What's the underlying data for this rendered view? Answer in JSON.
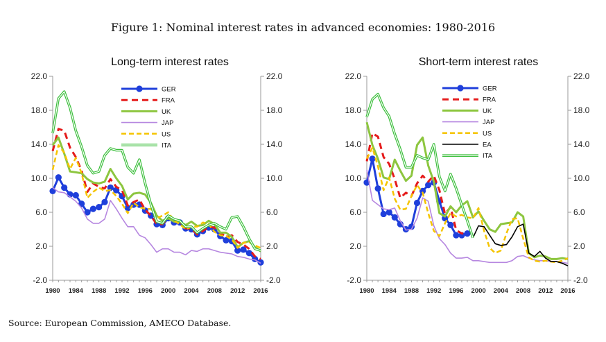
{
  "figure_title": "Figure 1: Nominal interest rates in advanced economies: 1980-2016",
  "source": "Source: European Commission, AMECO Database.",
  "series_styles": {
    "GER": {
      "color": "#1f3fdb",
      "width": 3,
      "dash": "",
      "marker": "circle"
    },
    "FRA": {
      "color": "#e51b1b",
      "width": 3,
      "dash": "9,6",
      "marker": ""
    },
    "UK": {
      "color": "#8dc63f",
      "width": 3,
      "dash": "",
      "marker": ""
    },
    "JAP": {
      "color": "#b687e0",
      "width": 1.6,
      "dash": "",
      "marker": ""
    },
    "US": {
      "color": "#f5c400",
      "width": 2.5,
      "dash": "7,4",
      "marker": ""
    },
    "EA": {
      "color": "#000000",
      "width": 1.6,
      "dash": "",
      "marker": ""
    },
    "ITA": {
      "color": "#3dbf3d",
      "width": 1.2,
      "dash": "",
      "marker": "",
      "double": true
    }
  },
  "chart_data": [
    {
      "type": "line",
      "title": "Long-term interest rates",
      "xlabel": "",
      "ylabel": "",
      "xlim": [
        1980,
        2016
      ],
      "ylim": [
        -2,
        22
      ],
      "yticks": [
        -2.0,
        2.0,
        6.0,
        10.0,
        14.0,
        18.0,
        22.0
      ],
      "ytick_labels": [
        "-2.0",
        "2.0",
        "6.0",
        "10.0",
        "14.0",
        "18.0",
        "22.0"
      ],
      "xticks": [
        1980,
        1984,
        1988,
        1992,
        1996,
        2000,
        2004,
        2008,
        2012,
        2016
      ],
      "xtick_labels": [
        "1980",
        "1984",
        "1988",
        "1992",
        "1996",
        "2000",
        "2004",
        "2008",
        "2012",
        "2016"
      ],
      "legend": [
        "GER",
        "FRA",
        "UK",
        "JAP",
        "US",
        "ITA"
      ],
      "legend_position": "top-center",
      "series": [
        {
          "name": "GER",
          "x": [
            1980,
            1981,
            1982,
            1983,
            1984,
            1985,
            1986,
            1987,
            1988,
            1989,
            1990,
            1991,
            1992,
            1993,
            1994,
            1995,
            1996,
            1997,
            1998,
            1999,
            2000,
            2001,
            2002,
            2003,
            2004,
            2005,
            2006,
            2007,
            2008,
            2009,
            2010,
            2011,
            2012,
            2013,
            2014,
            2015,
            2016
          ],
          "values": [
            8.5,
            10.1,
            8.9,
            8.1,
            8.0,
            7.0,
            6.0,
            6.4,
            6.6,
            7.2,
            8.9,
            8.6,
            7.9,
            6.5,
            6.9,
            6.9,
            6.2,
            5.6,
            4.6,
            4.5,
            5.3,
            4.8,
            4.8,
            4.1,
            4.0,
            3.4,
            3.8,
            4.2,
            4.0,
            3.2,
            2.7,
            2.6,
            1.5,
            1.6,
            1.2,
            0.5,
            0.1
          ]
        },
        {
          "name": "FRA",
          "x": [
            1980,
            1981,
            1982,
            1983,
            1984,
            1985,
            1986,
            1987,
            1988,
            1989,
            1990,
            1991,
            1992,
            1993,
            1994,
            1995,
            1996,
            1997,
            1998,
            1999,
            2000,
            2001,
            2002,
            2003,
            2004,
            2005,
            2006,
            2007,
            2008,
            2009,
            2010,
            2011,
            2012,
            2013,
            2014,
            2015,
            2016
          ],
          "values": [
            13.2,
            15.8,
            15.6,
            13.6,
            12.5,
            10.9,
            8.4,
            9.4,
            9.0,
            8.8,
            9.9,
            9.0,
            8.6,
            6.8,
            7.2,
            7.5,
            6.3,
            5.6,
            4.6,
            4.6,
            5.4,
            4.9,
            4.9,
            4.1,
            4.1,
            3.4,
            3.8,
            4.3,
            4.2,
            3.6,
            3.1,
            3.3,
            2.5,
            2.2,
            1.7,
            0.8,
            0.5
          ]
        },
        {
          "name": "UK",
          "x": [
            1980,
            1981,
            1982,
            1983,
            1984,
            1985,
            1986,
            1987,
            1988,
            1989,
            1990,
            1991,
            1992,
            1993,
            1994,
            1995,
            1996,
            1997,
            1998,
            1999,
            2000,
            2001,
            2002,
            2003,
            2004,
            2005,
            2006,
            2007,
            2008,
            2009,
            2010,
            2011,
            2012,
            2013,
            2014,
            2015,
            2016
          ],
          "values": [
            13.9,
            14.8,
            12.9,
            10.8,
            10.7,
            10.6,
            9.9,
            9.5,
            9.4,
            9.6,
            11.1,
            10.0,
            9.1,
            7.5,
            8.2,
            8.3,
            8.1,
            7.1,
            5.6,
            5.0,
            5.3,
            4.9,
            4.9,
            4.5,
            4.9,
            4.4,
            4.5,
            5.0,
            4.6,
            3.6,
            3.6,
            3.1,
            1.9,
            2.4,
            2.6,
            1.9,
            1.4
          ]
        },
        {
          "name": "JAP",
          "x": [
            1980,
            1981,
            1982,
            1983,
            1984,
            1985,
            1986,
            1987,
            1988,
            1989,
            1990,
            1991,
            1992,
            1993,
            1994,
            1995,
            1996,
            1997,
            1998,
            1999,
            2000,
            2001,
            2002,
            2003,
            2004,
            2005,
            2006,
            2007,
            2008,
            2009,
            2010,
            2011,
            2012,
            2013,
            2014,
            2015,
            2016
          ],
          "values": [
            8.9,
            8.4,
            8.3,
            7.8,
            7.3,
            6.5,
            5.2,
            4.7,
            4.7,
            5.2,
            7.4,
            6.4,
            5.3,
            4.3,
            4.3,
            3.3,
            3.0,
            2.2,
            1.3,
            1.7,
            1.7,
            1.3,
            1.3,
            1.0,
            1.5,
            1.4,
            1.7,
            1.7,
            1.5,
            1.3,
            1.2,
            1.1,
            0.8,
            0.7,
            0.5,
            0.4,
            0.0
          ]
        },
        {
          "name": "US",
          "x": [
            1980,
            1981,
            1982,
            1983,
            1984,
            1985,
            1986,
            1987,
            1988,
            1989,
            1990,
            1991,
            1992,
            1993,
            1994,
            1995,
            1996,
            1997,
            1998,
            1999,
            2000,
            2001,
            2002,
            2003,
            2004,
            2005,
            2006,
            2007,
            2008,
            2009,
            2010,
            2011,
            2012,
            2013,
            2014,
            2015,
            2016
          ],
          "values": [
            11.0,
            13.9,
            13.0,
            11.1,
            12.4,
            10.6,
            7.7,
            8.4,
            8.9,
            8.5,
            8.6,
            7.9,
            7.0,
            5.9,
            7.1,
            6.6,
            6.4,
            6.4,
            5.3,
            5.6,
            6.0,
            5.0,
            4.6,
            4.0,
            4.3,
            4.3,
            4.8,
            4.6,
            3.7,
            3.3,
            3.2,
            2.8,
            1.8,
            2.4,
            2.5,
            2.1,
            1.8
          ]
        },
        {
          "name": "ITA",
          "x": [
            1980,
            1981,
            1982,
            1983,
            1984,
            1985,
            1986,
            1987,
            1988,
            1989,
            1990,
            1991,
            1992,
            1993,
            1994,
            1995,
            1996,
            1997,
            1998,
            1999,
            2000,
            2001,
            2002,
            2003,
            2004,
            2005,
            2006,
            2007,
            2008,
            2009,
            2010,
            2011,
            2012,
            2013,
            2014,
            2015,
            2016
          ],
          "values": [
            15.3,
            19.4,
            20.2,
            18.3,
            15.6,
            13.7,
            11.5,
            10.6,
            10.8,
            12.7,
            13.5,
            13.3,
            13.3,
            11.3,
            10.6,
            12.2,
            9.4,
            6.9,
            4.9,
            4.7,
            5.6,
            5.2,
            5.0,
            4.3,
            4.3,
            3.6,
            4.1,
            4.5,
            4.7,
            4.3,
            4.0,
            5.4,
            5.5,
            4.3,
            2.9,
            1.7,
            1.5
          ]
        }
      ]
    },
    {
      "type": "line",
      "title": "Short-term interest rates",
      "xlabel": "",
      "ylabel": "",
      "xlim": [
        1980,
        2016
      ],
      "ylim": [
        -2,
        22
      ],
      "yticks": [
        -2.0,
        2.0,
        6.0,
        10.0,
        14.0,
        18.0,
        22.0
      ],
      "ytick_labels": [
        "-2.0",
        "2.0",
        "6.0",
        "10.0",
        "14.0",
        "18.0",
        "22.0"
      ],
      "xticks": [
        1980,
        1984,
        1988,
        1992,
        1996,
        2000,
        2004,
        2008,
        2012,
        2016
      ],
      "xtick_labels": [
        "1980",
        "1984",
        "1988",
        "1992",
        "1996",
        "2000",
        "2004",
        "2008",
        "2012",
        "2016"
      ],
      "legend": [
        "GER",
        "FRA",
        "UK",
        "JAP",
        "US",
        "EA",
        "ITA"
      ],
      "legend_position": "top-center",
      "series": [
        {
          "name": "GER",
          "x": [
            1980,
            1981,
            1982,
            1983,
            1984,
            1985,
            1986,
            1987,
            1988,
            1989,
            1990,
            1991,
            1992,
            1993,
            1994,
            1995,
            1996,
            1997,
            1998
          ],
          "values": [
            9.5,
            12.3,
            8.8,
            5.8,
            6.0,
            5.4,
            4.6,
            4.0,
            4.3,
            7.1,
            8.5,
            9.2,
            9.5,
            7.3,
            5.3,
            4.5,
            3.3,
            3.3,
            3.5
          ]
        },
        {
          "name": "FRA",
          "x": [
            1980,
            1981,
            1982,
            1983,
            1984,
            1985,
            1986,
            1987,
            1988,
            1989,
            1990,
            1991,
            1992,
            1993,
            1994,
            1995,
            1996,
            1997,
            1998
          ],
          "values": [
            12.0,
            15.3,
            14.9,
            12.5,
            11.7,
            9.9,
            7.7,
            8.3,
            7.9,
            9.4,
            10.3,
            9.6,
            10.3,
            8.6,
            5.8,
            6.6,
            3.9,
            3.5,
            3.6
          ]
        },
        {
          "name": "UK",
          "x": [
            1980,
            1981,
            1982,
            1983,
            1984,
            1985,
            1986,
            1987,
            1988,
            1989,
            1990,
            1991,
            1992,
            1993,
            1994,
            1995,
            1996,
            1997,
            1998,
            1999,
            2000,
            2001,
            2002,
            2003,
            2004,
            2005,
            2006,
            2007,
            2008,
            2009,
            2010,
            2011,
            2012,
            2013,
            2014,
            2015,
            2016
          ],
          "values": [
            16.6,
            13.9,
            12.3,
            10.1,
            9.9,
            12.2,
            10.9,
            9.7,
            10.3,
            13.9,
            14.8,
            11.5,
            9.6,
            5.9,
            5.5,
            6.7,
            6.0,
            6.8,
            7.3,
            5.4,
            6.1,
            5.0,
            4.0,
            3.7,
            4.6,
            4.7,
            4.8,
            6.0,
            5.5,
            1.2,
            0.7,
            0.9,
            0.8,
            0.5,
            0.5,
            0.6,
            0.5
          ]
        },
        {
          "name": "JAP",
          "x": [
            1980,
            1981,
            1982,
            1983,
            1984,
            1985,
            1986,
            1987,
            1988,
            1989,
            1990,
            1991,
            1992,
            1993,
            1994,
            1995,
            1996,
            1997,
            1998,
            1999,
            2000,
            2001,
            2002,
            2003,
            2004,
            2005,
            2006,
            2007,
            2008,
            2009,
            2010,
            2011,
            2012,
            2013,
            2014,
            2015,
            2016
          ],
          "values": [
            11.0,
            7.4,
            6.9,
            6.4,
            6.3,
            6.5,
            5.0,
            3.9,
            4.0,
            5.3,
            7.7,
            7.3,
            4.4,
            2.9,
            2.2,
            1.2,
            0.6,
            0.6,
            0.7,
            0.3,
            0.3,
            0.2,
            0.1,
            0.1,
            0.1,
            0.1,
            0.3,
            0.8,
            0.9,
            0.6,
            0.4,
            0.3,
            0.3,
            0.2,
            0.2,
            0.1,
            0.0
          ]
        },
        {
          "name": "US",
          "x": [
            1980,
            1981,
            1982,
            1983,
            1984,
            1985,
            1986,
            1987,
            1988,
            1989,
            1990,
            1991,
            1992,
            1993,
            1994,
            1995,
            1996,
            1997,
            1998,
            1999,
            2000,
            2001,
            2002,
            2003,
            2004,
            2005,
            2006,
            2007,
            2008,
            2009,
            2010,
            2011,
            2012,
            2013,
            2014,
            2015,
            2016
          ],
          "values": [
            12.3,
            13.6,
            11.4,
            8.6,
            10.1,
            7.6,
            6.3,
            6.4,
            7.9,
            9.2,
            8.3,
            5.9,
            3.8,
            3.2,
            4.7,
            5.9,
            5.5,
            5.7,
            5.4,
            5.3,
            6.5,
            3.8,
            1.8,
            1.2,
            1.5,
            3.5,
            5.2,
            5.3,
            2.9,
            0.7,
            0.3,
            0.2,
            0.3,
            0.2,
            0.1,
            0.3,
            0.6
          ]
        },
        {
          "name": "EA",
          "x": [
            1999,
            2000,
            2001,
            2002,
            2003,
            2004,
            2005,
            2006,
            2007,
            2008,
            2009,
            2010,
            2011,
            2012,
            2013,
            2014,
            2015,
            2016
          ],
          "values": [
            3.0,
            4.4,
            4.3,
            3.3,
            2.3,
            2.1,
            2.2,
            3.1,
            4.3,
            4.6,
            1.2,
            0.8,
            1.4,
            0.6,
            0.2,
            0.2,
            -0.0,
            -0.3
          ]
        },
        {
          "name": "ITA",
          "x": [
            1980,
            1981,
            1982,
            1983,
            1984,
            1985,
            1986,
            1987,
            1988,
            1989,
            1990,
            1991,
            1992,
            1993,
            1994,
            1995,
            1996,
            1997,
            1998,
            1999
          ],
          "values": [
            17.2,
            19.3,
            19.9,
            18.3,
            17.3,
            15.2,
            13.4,
            11.3,
            11.3,
            12.7,
            12.4,
            12.2,
            14.0,
            10.2,
            8.5,
            10.5,
            8.8,
            6.9,
            5.0,
            3.0
          ]
        }
      ]
    }
  ]
}
